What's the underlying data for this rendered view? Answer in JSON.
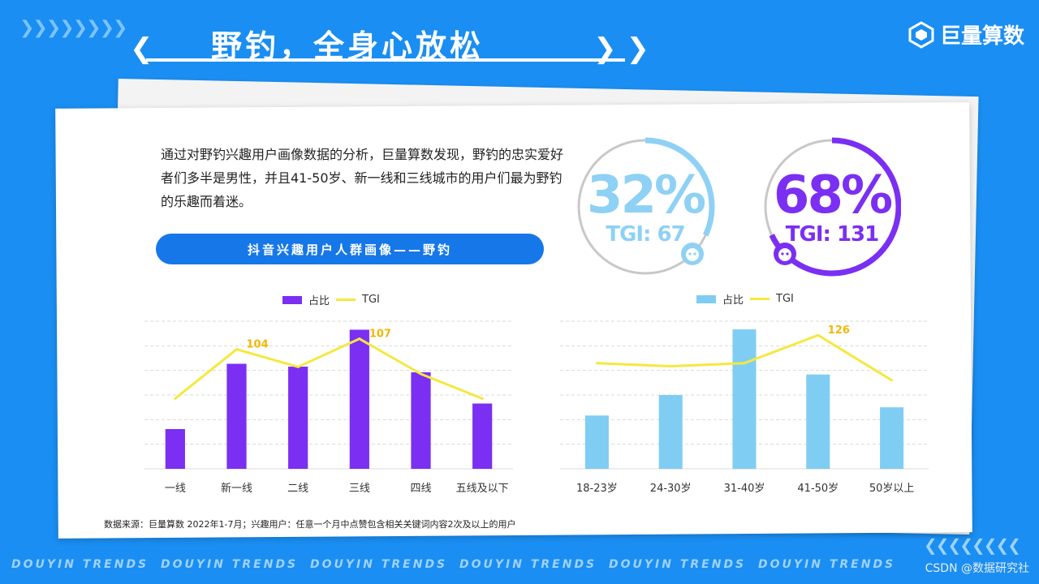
{
  "header": {
    "title": "野钓，全身心放松",
    "logo_text": "巨量算数"
  },
  "description": "通过对野钓兴趣用户画像数据的分析，巨量算数发现，野钓的忠实爱好者们多半是男性，并且41-50岁、新一线和三线城市的用户们最为野钓的乐趣而着迷。",
  "section_title": "抖音兴趣用户人群画像——野钓",
  "stats": [
    {
      "percent": "32%",
      "tgi": "TGI: 67",
      "color": "#8ed1f5",
      "ring_fraction": 0.32,
      "icon": "male-avatar-icon"
    },
    {
      "percent": "68%",
      "tgi": "TGI: 131",
      "color": "#7b2ff2",
      "ring_fraction": 0.68,
      "icon": "female-avatar-icon"
    }
  ],
  "source_note": "数据来源：巨量算数 2022年1-7月；兴趣用户：任意一个月中点赞包含相关关键词内容2次及以上的用户",
  "footer": {
    "repeat_text": "DOUYIN TRENDS",
    "watermark": "CSDN @数据研究社"
  },
  "chart_data": [
    {
      "type": "bar",
      "legend": {
        "bar": "占比",
        "line": "TGI"
      },
      "bar_color": "#7b2ff2",
      "line_color": "#f5e83f",
      "categories": [
        "一线",
        "新一线",
        "二线",
        "三线",
        "四线",
        "五线及以下"
      ],
      "series": [
        {
          "name": "占比",
          "kind": "bar",
          "values": [
            14,
            37,
            36,
            49,
            34,
            23
          ]
        },
        {
          "name": "TGI",
          "kind": "line",
          "values": [
            90,
            104,
            99,
            107,
            97,
            90
          ]
        }
      ],
      "line_labels": [
        {
          "index": 1,
          "text": "104"
        },
        {
          "index": 3,
          "text": "107"
        }
      ],
      "ylim": [
        0,
        52
      ],
      "line_ylim": [
        70,
        112
      ],
      "grid": true
    },
    {
      "type": "bar",
      "legend": {
        "bar": "占比",
        "line": "TGI"
      },
      "bar_color": "#7fcdf2",
      "line_color": "#f5e83f",
      "categories": [
        "18-23岁",
        "24-30岁",
        "31-40岁",
        "41-50岁",
        "50岁以上"
      ],
      "series": [
        {
          "name": "占比",
          "kind": "bar",
          "values": [
            13,
            18,
            34,
            23,
            15
          ]
        },
        {
          "name": "TGI",
          "kind": "line",
          "values": [
            108,
            106,
            108,
            126,
            97
          ]
        }
      ],
      "line_labels": [
        {
          "index": 3,
          "text": "126"
        }
      ],
      "ylim": [
        0,
        36
      ],
      "line_ylim": [
        40,
        135
      ],
      "grid": true
    }
  ]
}
